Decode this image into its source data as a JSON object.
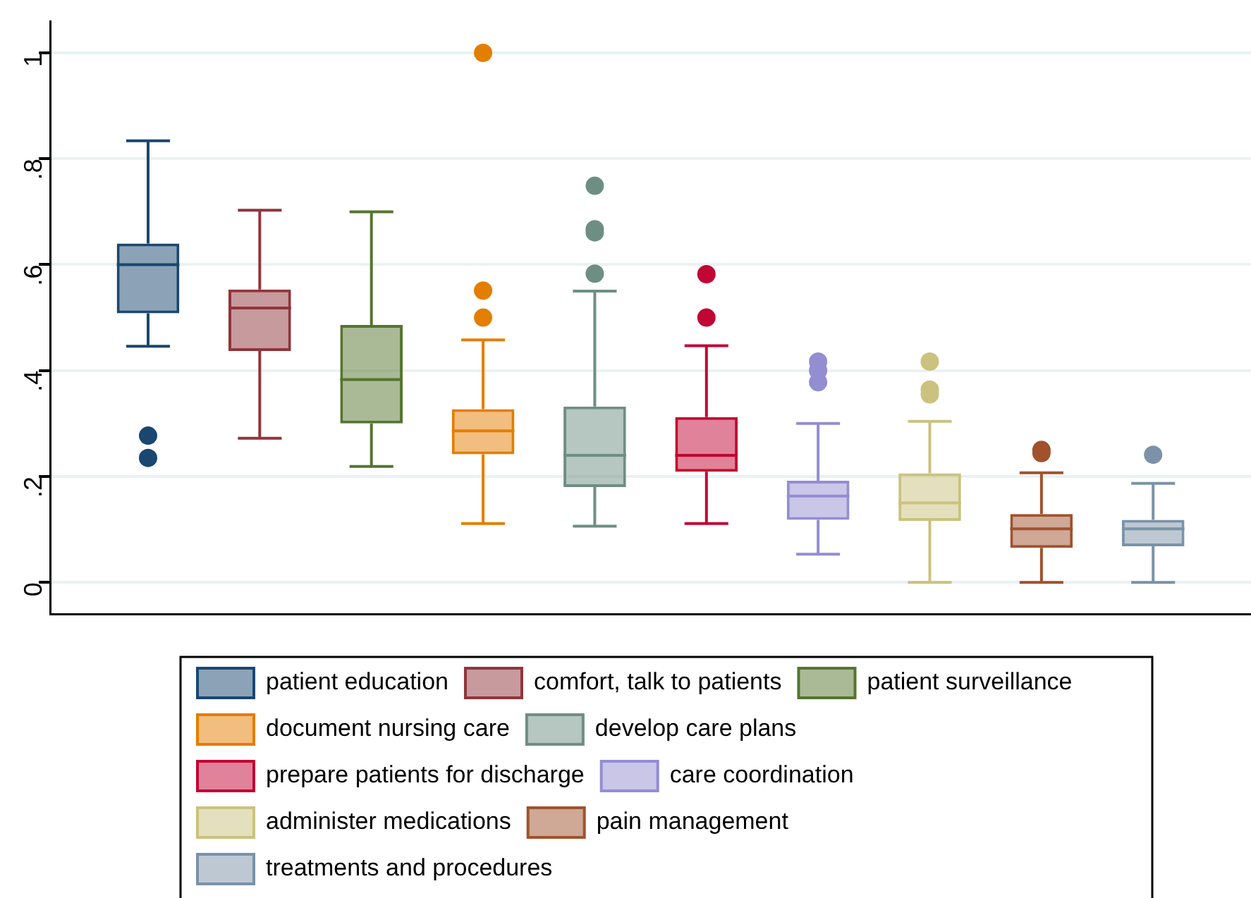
{
  "chart_data": {
    "type": "box",
    "categories": [
      null
    ],
    "ylim": [
      -0.06,
      1.06
    ],
    "yticks": [
      0,
      {
        "value": 0.2,
        "label": ".2"
      },
      {
        "value": 0.4,
        "label": ".4"
      },
      {
        "value": 0.6,
        "label": ".6"
      },
      {
        "value": 0.8,
        "label": ".8"
      },
      1
    ],
    "grid": "y",
    "legend": "bottom",
    "series": [
      {
        "name": "patient education",
        "color": "#1a476f",
        "boxes": [
          {
            "low": 0.446,
            "q1": 0.508,
            "median": 0.6,
            "q3": 0.64,
            "high": 0.834,
            "outliers": [
              0.277,
              0.235
            ]
          }
        ]
      },
      {
        "name": "comfort, talk to patients",
        "color": "#90353b",
        "boxes": [
          {
            "low": 0.272,
            "q1": 0.437,
            "median": 0.518,
            "q3": 0.553,
            "high": 0.703
          }
        ]
      },
      {
        "name": "patient surveillance",
        "color": "#55752f",
        "boxes": [
          {
            "low": 0.219,
            "q1": 0.3,
            "median": 0.383,
            "q3": 0.486,
            "high": 0.7
          }
        ]
      },
      {
        "name": "document nursing care",
        "color": "#e37e00",
        "boxes": [
          {
            "low": 0.111,
            "q1": 0.242,
            "median": 0.286,
            "q3": 0.327,
            "high": 0.458,
            "outliers": [
              1.0,
              0.551,
              0.5
            ]
          }
        ]
      },
      {
        "name": "develop care plans",
        "color": "#6e8e84",
        "boxes": [
          {
            "low": 0.106,
            "q1": 0.18,
            "median": 0.24,
            "q3": 0.332,
            "high": 0.55,
            "outliers": [
              0.749,
              0.667,
              0.661,
              0.583
            ]
          }
        ]
      },
      {
        "name": "prepare patients for discharge",
        "color": "#c10534",
        "boxes": [
          {
            "low": 0.111,
            "q1": 0.209,
            "median": 0.24,
            "q3": 0.312,
            "high": 0.447,
            "outliers": [
              0.582,
              0.5
            ]
          }
        ]
      },
      {
        "name": "care coordination",
        "color": "#938dd2",
        "boxes": [
          {
            "low": 0.053,
            "q1": 0.118,
            "median": 0.163,
            "q3": 0.192,
            "high": 0.3,
            "outliers": [
              0.417,
              0.4,
              0.378
            ]
          }
        ]
      },
      {
        "name": "administer medications",
        "color": "#cac27e",
        "boxes": [
          {
            "low": 0,
            "q1": 0.116,
            "median": 0.15,
            "q3": 0.206,
            "high": 0.304,
            "outliers": [
              0.417,
              0.364,
              0.355
            ]
          }
        ]
      },
      {
        "name": "pain management",
        "color": "#a0522d",
        "boxes": [
          {
            "low": 0,
            "q1": 0.065,
            "median": 0.101,
            "q3": 0.129,
            "high": 0.207,
            "outliers": [
              0.25,
              0.244
            ]
          }
        ]
      },
      {
        "name": "treatments and procedures",
        "color": "#7b92a8",
        "boxes": [
          {
            "low": 0,
            "q1": 0.068,
            "median": 0.101,
            "q3": 0.118,
            "high": 0.187,
            "outliers": [
              0.241
            ]
          }
        ]
      }
    ]
  }
}
